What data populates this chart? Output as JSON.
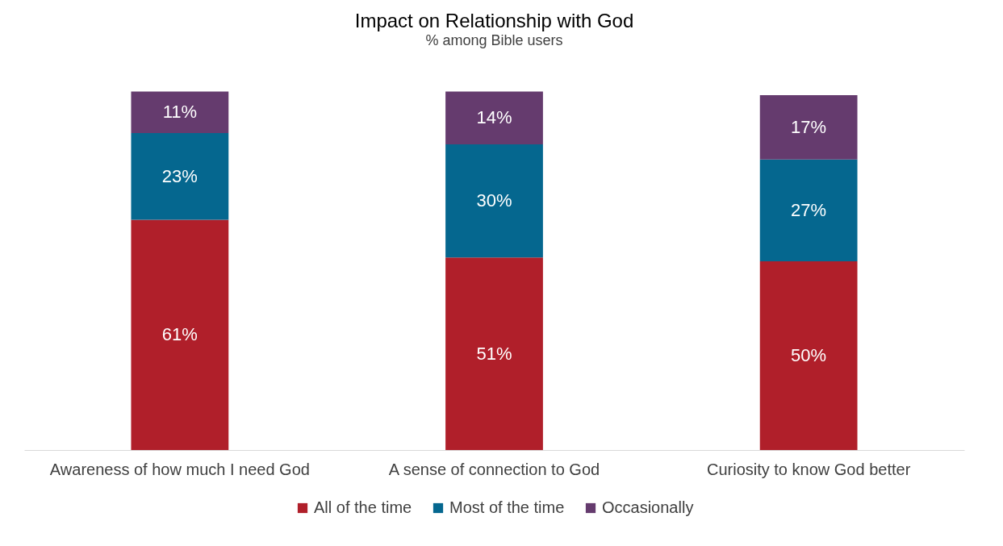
{
  "chart_data": {
    "type": "bar",
    "title": "Impact on Relationship with God",
    "subtitle": "% among Bible users",
    "categories": [
      "Awareness of how much I need God",
      "A sense of connection to God",
      "Curiosity to know God better"
    ],
    "stacked": true,
    "legend": "bottom",
    "series": [
      {
        "name": "All of the time",
        "color": "#b01f2a",
        "values": [
          61,
          51,
          50
        ],
        "value_labels": [
          "61%",
          "51%",
          "50%"
        ]
      },
      {
        "name": "Most of the time",
        "color": "#05678f",
        "values": [
          23,
          30,
          27
        ],
        "value_labels": [
          "23%",
          "30%",
          "27%"
        ]
      },
      {
        "name": "Occasionally",
        "color": "#653b6e",
        "values": [
          11,
          14,
          17
        ],
        "value_labels": [
          "11%",
          "14%",
          "17%"
        ]
      }
    ]
  }
}
